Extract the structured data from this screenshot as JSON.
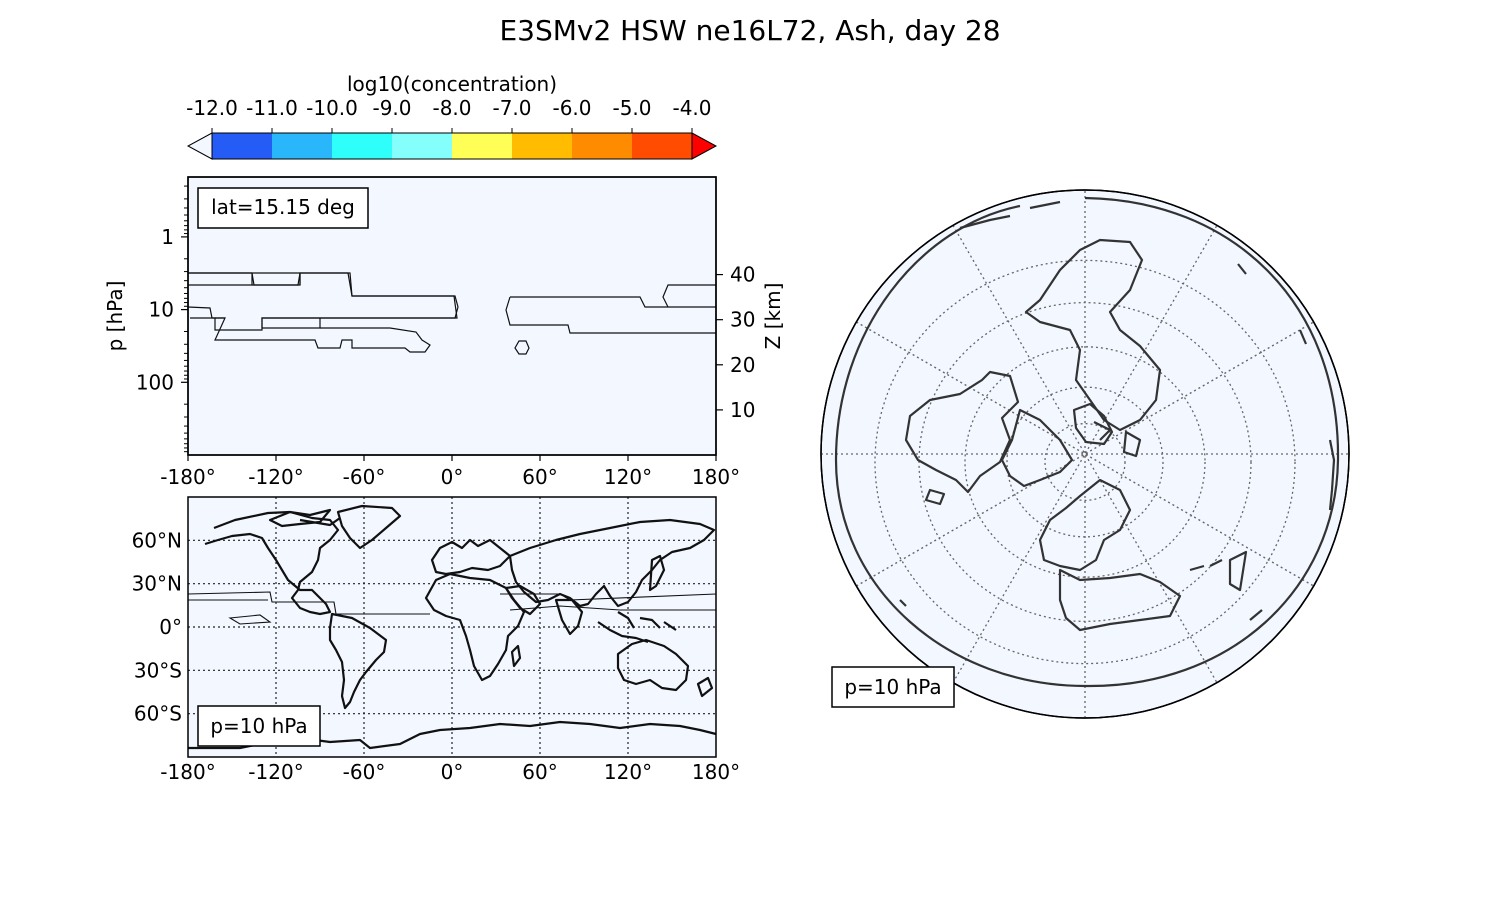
{
  "title": "E3SMv2 HSW ne16L72, Ash, day 28",
  "colorbar": {
    "label": "log10(concentration)",
    "ticks": [
      "-12.0",
      "-11.0",
      "-10.0",
      "-9.0",
      "-8.0",
      "-7.0",
      "-6.0",
      "-5.0",
      "-4.0"
    ],
    "colors": [
      "#f3f7ff",
      "#245cf5",
      "#2ab6fb",
      "#2efffb",
      "#85fffc",
      "#ffff55",
      "#ffbc00",
      "#ff8b00",
      "#ff4c00",
      "#ff0000"
    ]
  },
  "chart_data": [
    {
      "type": "contour",
      "panel": "zonal-cross-section",
      "annotation": "lat=15.15 deg",
      "xlabel": "",
      "ylabel": "p  [hPa]",
      "y2label": "Z [km]",
      "xticks": [
        "-180°",
        "-120°",
        "-60°",
        "0°",
        "60°",
        "120°",
        "180°"
      ],
      "xlim": [
        -180,
        180
      ],
      "yticks": [
        "1",
        "10",
        "100"
      ],
      "yscale": "log",
      "ylim_hpa": [
        1000,
        0.15
      ],
      "y2ticks": [
        "10",
        "20",
        "30",
        "40"
      ],
      "background_level": "< -12.0",
      "contour_regions": [
        {
          "lon_range": [
            -180,
            0
          ],
          "p_range_hpa": [
            3,
            50
          ]
        },
        {
          "lon_range": [
            38,
            180
          ],
          "p_range_hpa": [
            4,
            20
          ]
        }
      ]
    },
    {
      "type": "map",
      "panel": "lat-lon",
      "annotation": "p=10 hPa",
      "xticks": [
        "-180°",
        "-120°",
        "-60°",
        "0°",
        "60°",
        "120°",
        "180°"
      ],
      "yticks": [
        "60°N",
        "30°N",
        "0°",
        "30°S",
        "60°S"
      ],
      "xlim": [
        -180,
        180
      ],
      "ylim": [
        -90,
        90
      ],
      "grid": true,
      "background_level": "< -12.0",
      "contour_band_lat": [
        13,
        24
      ]
    },
    {
      "type": "map",
      "panel": "orthographic",
      "annotation": "p=10 hPa",
      "grid": true,
      "background_level": "< -12.0"
    }
  ]
}
